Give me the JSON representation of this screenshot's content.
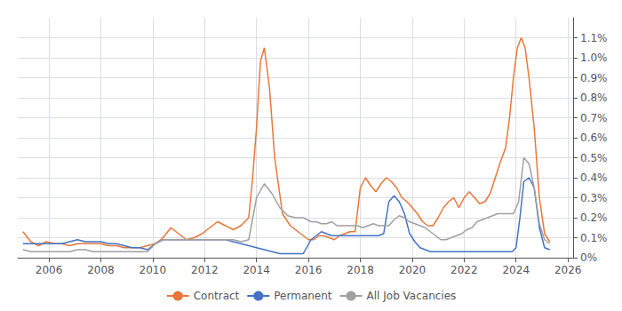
{
  "chart_data": {
    "type": "line",
    "series": [
      {
        "name": "Contract",
        "color": "#E8763A",
        "x": [
          2005.0,
          2005.3,
          2005.6,
          2005.9,
          2006.2,
          2006.5,
          2006.8,
          2007.1,
          2007.4,
          2007.7,
          2008.0,
          2008.3,
          2008.6,
          2008.9,
          2009.2,
          2009.5,
          2009.8,
          2010.1,
          2010.4,
          2010.7,
          2011.0,
          2011.3,
          2011.6,
          2011.9,
          2012.2,
          2012.5,
          2012.8,
          2013.1,
          2013.4,
          2013.7,
          2013.85,
          2014.0,
          2014.15,
          2014.3,
          2014.5,
          2014.7,
          2015.0,
          2015.3,
          2015.6,
          2015.9,
          2016.0,
          2016.2,
          2016.4,
          2016.6,
          2016.8,
          2017.0,
          2017.2,
          2017.4,
          2017.6,
          2017.8,
          2018.0,
          2018.2,
          2018.4,
          2018.6,
          2018.8,
          2019.0,
          2019.2,
          2019.4,
          2019.6,
          2019.8,
          2020.0,
          2020.2,
          2020.4,
          2020.6,
          2020.8,
          2021.0,
          2021.2,
          2021.4,
          2021.6,
          2021.8,
          2022.0,
          2022.2,
          2022.4,
          2022.6,
          2022.8,
          2023.0,
          2023.2,
          2023.4,
          2023.6,
          2023.75,
          2023.9,
          2024.05,
          2024.2,
          2024.35,
          2024.5,
          2024.7,
          2024.9,
          2025.1,
          2025.3
        ],
        "values": [
          0.0013,
          0.0008,
          0.0006,
          0.0008,
          0.0007,
          0.0007,
          0.0006,
          0.0007,
          0.0007,
          0.0007,
          0.0007,
          0.0006,
          0.0006,
          0.0005,
          0.0005,
          0.0005,
          0.0006,
          0.0007,
          0.001,
          0.0015,
          0.0012,
          0.0009,
          0.001,
          0.0012,
          0.0015,
          0.0018,
          0.0016,
          0.0014,
          0.0016,
          0.002,
          0.004,
          0.0065,
          0.0098,
          0.0105,
          0.0085,
          0.005,
          0.0022,
          0.0016,
          0.0013,
          0.001,
          0.0009,
          0.0009,
          0.0011,
          0.0011,
          0.001,
          0.0009,
          0.0011,
          0.0012,
          0.0013,
          0.0013,
          0.0035,
          0.004,
          0.0036,
          0.0033,
          0.0037,
          0.004,
          0.0038,
          0.0035,
          0.003,
          0.0028,
          0.0025,
          0.0022,
          0.0018,
          0.0016,
          0.0016,
          0.002,
          0.0025,
          0.0028,
          0.003,
          0.0025,
          0.003,
          0.0033,
          0.003,
          0.0027,
          0.0028,
          0.0032,
          0.004,
          0.0048,
          0.0055,
          0.007,
          0.009,
          0.0105,
          0.011,
          0.0105,
          0.009,
          0.0065,
          0.003,
          0.0012,
          0.0008
        ]
      },
      {
        "name": "Permanent",
        "color": "#4472C4",
        "x": [
          2005.0,
          2005.3,
          2005.6,
          2005.9,
          2006.2,
          2006.5,
          2006.8,
          2007.1,
          2007.4,
          2007.7,
          2008.0,
          2008.3,
          2008.6,
          2008.9,
          2009.2,
          2009.5,
          2009.8,
          2010.1,
          2010.4,
          2010.7,
          2011.0,
          2011.3,
          2011.6,
          2011.9,
          2012.2,
          2012.5,
          2012.8,
          2013.1,
          2013.4,
          2013.7,
          2014.0,
          2014.3,
          2014.6,
          2014.9,
          2015.2,
          2015.5,
          2015.8,
          2016.1,
          2016.3,
          2016.5,
          2016.7,
          2016.9,
          2017.1,
          2017.3,
          2017.5,
          2017.7,
          2017.9,
          2018.1,
          2018.3,
          2018.5,
          2018.7,
          2018.9,
          2019.1,
          2019.3,
          2019.5,
          2019.7,
          2019.9,
          2020.1,
          2020.3,
          2020.5,
          2020.7,
          2020.9,
          2021.1,
          2021.3,
          2021.5,
          2021.7,
          2021.9,
          2022.1,
          2022.3,
          2022.5,
          2022.7,
          2022.9,
          2023.1,
          2023.3,
          2023.5,
          2023.7,
          2023.85,
          2024.0,
          2024.15,
          2024.3,
          2024.5,
          2024.7,
          2024.9,
          2025.1,
          2025.3
        ],
        "values": [
          0.0007,
          0.0007,
          0.0007,
          0.0007,
          0.0007,
          0.0007,
          0.0008,
          0.0009,
          0.0008,
          0.0008,
          0.0008,
          0.0007,
          0.0007,
          0.0006,
          0.0005,
          0.0005,
          0.0004,
          0.0007,
          0.0009,
          0.0009,
          0.0009,
          0.0009,
          0.0009,
          0.0009,
          0.0009,
          0.0009,
          0.0009,
          0.0008,
          0.0007,
          0.0006,
          0.0005,
          0.0004,
          0.0003,
          0.0002,
          0.0002,
          0.0002,
          0.0002,
          0.0009,
          0.0011,
          0.0013,
          0.0012,
          0.0011,
          0.0011,
          0.0011,
          0.0011,
          0.0011,
          0.0011,
          0.0011,
          0.0011,
          0.0011,
          0.0011,
          0.0012,
          0.0028,
          0.0031,
          0.0028,
          0.0022,
          0.0012,
          0.0008,
          0.0005,
          0.0004,
          0.0003,
          0.0003,
          0.0003,
          0.0003,
          0.0003,
          0.0003,
          0.0003,
          0.0003,
          0.0003,
          0.0003,
          0.0003,
          0.0003,
          0.0003,
          0.0003,
          0.0003,
          0.0003,
          0.0003,
          0.0005,
          0.002,
          0.0038,
          0.004,
          0.0035,
          0.0015,
          0.0005,
          0.0004
        ]
      },
      {
        "name": "All Job Vacancies",
        "color": "#A0A0A0",
        "x": [
          2005.0,
          2005.3,
          2005.6,
          2005.9,
          2006.2,
          2006.5,
          2006.8,
          2007.1,
          2007.4,
          2007.7,
          2008.0,
          2008.3,
          2008.6,
          2008.9,
          2009.2,
          2009.5,
          2009.8,
          2010.1,
          2010.4,
          2010.7,
          2011.0,
          2011.3,
          2011.6,
          2011.9,
          2012.2,
          2012.5,
          2012.8,
          2013.1,
          2013.4,
          2013.7,
          2014.0,
          2014.3,
          2014.6,
          2014.9,
          2015.2,
          2015.5,
          2015.8,
          2016.1,
          2016.3,
          2016.5,
          2016.7,
          2016.9,
          2017.1,
          2017.3,
          2017.5,
          2017.7,
          2017.9,
          2018.1,
          2018.3,
          2018.5,
          2018.7,
          2018.9,
          2019.1,
          2019.3,
          2019.5,
          2019.7,
          2019.9,
          2020.1,
          2020.3,
          2020.5,
          2020.7,
          2020.9,
          2021.1,
          2021.3,
          2021.5,
          2021.7,
          2021.9,
          2022.1,
          2022.3,
          2022.5,
          2022.7,
          2022.9,
          2023.1,
          2023.3,
          2023.5,
          2023.7,
          2023.9,
          2024.1,
          2024.3,
          2024.5,
          2024.7,
          2024.9,
          2025.1,
          2025.3
        ],
        "values": [
          0.0004,
          0.0003,
          0.0003,
          0.0003,
          0.0003,
          0.0003,
          0.0003,
          0.0004,
          0.0004,
          0.0003,
          0.0003,
          0.0003,
          0.0003,
          0.0003,
          0.0003,
          0.0003,
          0.0003,
          0.0007,
          0.0009,
          0.0009,
          0.0009,
          0.0009,
          0.0009,
          0.0009,
          0.0009,
          0.0009,
          0.0009,
          0.0009,
          0.0008,
          0.0009,
          0.003,
          0.0037,
          0.0032,
          0.0025,
          0.0021,
          0.002,
          0.002,
          0.0018,
          0.0018,
          0.0017,
          0.0017,
          0.0018,
          0.0016,
          0.0016,
          0.0016,
          0.0016,
          0.0016,
          0.0015,
          0.0016,
          0.0017,
          0.0016,
          0.0016,
          0.0016,
          0.0019,
          0.0021,
          0.002,
          0.0018,
          0.0017,
          0.0016,
          0.0015,
          0.0013,
          0.0011,
          0.0009,
          0.0009,
          0.001,
          0.0011,
          0.0012,
          0.0014,
          0.0015,
          0.0018,
          0.0019,
          0.002,
          0.0021,
          0.0022,
          0.0022,
          0.0022,
          0.0022,
          0.0028,
          0.005,
          0.0047,
          0.0035,
          0.0017,
          0.0009,
          0.0007
        ]
      }
    ],
    "xlim": [
      2004.8,
      2026.2
    ],
    "xticks": [
      2006,
      2008,
      2010,
      2012,
      2014,
      2016,
      2018,
      2020,
      2022,
      2024,
      2026
    ],
    "ylim": [
      0,
      0.012
    ],
    "yticks": [
      {
        "value": 0.0,
        "label": "0%"
      },
      {
        "value": 0.001,
        "label": "0.1%"
      },
      {
        "value": 0.002,
        "label": "0.2%"
      },
      {
        "value": 0.003,
        "label": "0.3%"
      },
      {
        "value": 0.004,
        "label": "0.4%"
      },
      {
        "value": 0.005,
        "label": "0.5%"
      },
      {
        "value": 0.006,
        "label": "0.6%"
      },
      {
        "value": 0.007,
        "label": "0.7%"
      },
      {
        "value": 0.008,
        "label": "0.8%"
      },
      {
        "value": 0.009,
        "label": "0.9%"
      },
      {
        "value": 0.01,
        "label": "1.0%"
      },
      {
        "value": 0.011,
        "label": "1.1%"
      }
    ],
    "grid": true,
    "legend": "bottom"
  }
}
